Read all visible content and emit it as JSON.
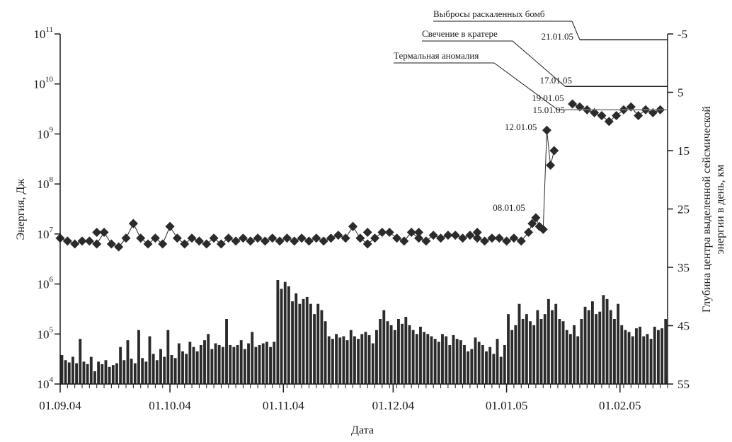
{
  "chart_data": {
    "type": "bar+scatter",
    "xlabel": "Дата",
    "ylabel_left": "Энергия, Дж",
    "ylabel_right_lines": [
      "Глубина центра выделенной сейсмической",
      "энергии в день, км"
    ],
    "x_range": [
      "2004-09-01",
      "2005-02-14"
    ],
    "x_ticks": [
      "01.09.04",
      "01.10.04",
      "01.11.04",
      "01.12.04",
      "01.01.05",
      "01.02.05"
    ],
    "left_axis": {
      "scale": "log",
      "range": [
        10000,
        100000000000
      ],
      "tick_exponents": [
        4,
        5,
        6,
        7,
        8,
        9,
        10,
        11
      ]
    },
    "right_axis": {
      "range": [
        55,
        -5
      ],
      "ticks": [
        -5,
        5,
        15,
        25,
        35,
        45,
        55
      ]
    },
    "series": [
      {
        "name": "",
        "kind": "bar",
        "axis": "left",
        "color": "#2b2b2b",
        "values": [
          38000,
          30000,
          27000,
          35000,
          26000,
          80000,
          28000,
          25000,
          35000,
          18000,
          28000,
          25000,
          30000,
          22000,
          24000,
          26000,
          55000,
          30000,
          75000,
          32000,
          26000,
          120000,
          33000,
          28000,
          90000,
          40000,
          30000,
          50000,
          35000,
          120000,
          38000,
          33000,
          65000,
          45000,
          40000,
          70000,
          55000,
          45000,
          60000,
          75000,
          100000,
          50000,
          65000,
          60000,
          55000,
          200000,
          60000,
          55000,
          60000,
          75000,
          50000,
          65000,
          110000,
          55000,
          60000,
          65000,
          70000,
          55000,
          70000,
          1200000,
          800000,
          1100000,
          900000,
          450000,
          650000,
          400000,
          500000,
          550000,
          400000,
          250000,
          400000,
          300000,
          180000,
          90000,
          80000,
          100000,
          85000,
          90000,
          75000,
          120000,
          90000,
          80000,
          100000,
          110000,
          95000,
          65000,
          120000,
          200000,
          300000,
          180000,
          150000,
          120000,
          200000,
          160000,
          220000,
          150000,
          120000,
          100000,
          140000,
          110000,
          100000,
          90000,
          80000,
          70000,
          100000,
          90000,
          60000,
          95000,
          80000,
          75000,
          60000,
          45000,
          50000,
          85000,
          70000,
          60000,
          45000,
          55000,
          40000,
          80000,
          35000,
          60000,
          250000,
          120000,
          150000,
          400000,
          200000,
          250000,
          180000,
          150000,
          300000,
          200000,
          250000,
          500000,
          300000,
          400000,
          200000,
          180000,
          120000,
          100000,
          150000,
          90000,
          200000,
          350000,
          300000,
          450000,
          250000,
          280000,
          600000,
          500000,
          300000,
          200000,
          400000,
          150000,
          120000,
          110000,
          90000,
          130000,
          140000,
          90000,
          100000,
          80000,
          140000,
          120000,
          130000,
          200000,
          180000,
          220000,
          900000,
          300000,
          450000,
          500000,
          400000,
          300000,
          350000,
          250000,
          100000,
          180000
        ],
        "start_date": "2004-09-01"
      },
      {
        "name": "",
        "kind": "line+markers",
        "axis": "right",
        "color": "#2b2b2b",
        "points": [
          [
            "2004-09-01",
            30
          ],
          [
            "2004-09-03",
            30.5
          ],
          [
            "2004-09-05",
            31
          ],
          [
            "2004-09-07",
            30.5
          ],
          [
            "2004-09-09",
            30.5
          ],
          [
            "2004-09-11",
            31
          ],
          [
            "2004-09-13",
            29
          ],
          [
            "2004-09-15",
            31
          ],
          [
            "2004-09-17",
            31.5
          ],
          [
            "2004-09-19",
            30
          ],
          [
            "2004-09-21",
            27.5
          ],
          [
            "2004-09-23",
            30
          ],
          [
            "2004-09-25",
            31
          ],
          [
            "2004-09-27",
            30
          ],
          [
            "2004-09-29",
            31
          ],
          [
            "2004-10-01",
            28
          ],
          [
            "2004-10-03",
            30
          ],
          [
            "2004-10-05",
            31
          ],
          [
            "2004-10-07",
            30
          ],
          [
            "2004-10-09",
            30.5
          ],
          [
            "2004-10-11",
            31
          ],
          [
            "2004-10-13",
            30
          ],
          [
            "2004-10-15",
            31
          ],
          [
            "2004-10-17",
            30
          ],
          [
            "2004-10-19",
            30.5
          ],
          [
            "2004-10-21",
            30
          ],
          [
            "2004-10-23",
            30.5
          ],
          [
            "2004-10-25",
            30
          ],
          [
            "2004-10-27",
            30.5
          ],
          [
            "2004-10-29",
            30
          ],
          [
            "2004-10-31",
            30.5
          ],
          [
            "2004-11-02",
            30
          ],
          [
            "2004-11-04",
            30.5
          ],
          [
            "2004-11-06",
            30
          ],
          [
            "2004-11-08",
            30.5
          ],
          [
            "2004-11-10",
            30
          ],
          [
            "2004-11-12",
            30.5
          ],
          [
            "2004-11-14",
            30
          ],
          [
            "2004-11-16",
            29.5
          ],
          [
            "2004-11-18",
            30
          ],
          [
            "2004-11-20",
            28
          ],
          [
            "2004-11-22",
            30
          ],
          [
            "2004-11-24",
            31
          ],
          [
            "2004-11-26",
            30
          ],
          [
            "2004-11-28",
            29
          ],
          [
            "2004-11-30",
            29
          ],
          [
            "2004-12-02",
            30
          ],
          [
            "2004-12-04",
            30.5
          ],
          [
            "2004-12-06",
            29
          ],
          [
            "2004-12-08",
            30
          ],
          [
            "2004-12-10",
            30.5
          ],
          [
            "2004-12-12",
            29.5
          ],
          [
            "2004-12-14",
            30
          ],
          [
            "2004-12-16",
            29.5
          ],
          [
            "2004-12-18",
            29.5
          ],
          [
            "2004-12-20",
            30
          ],
          [
            "2004-12-22",
            29.5
          ],
          [
            "2004-12-24",
            30
          ],
          [
            "2004-12-26",
            30.5
          ],
          [
            "2004-12-28",
            30
          ],
          [
            "2004-12-30",
            30
          ],
          [
            "2005-01-01",
            30.5
          ],
          [
            "2005-01-03",
            30
          ],
          [
            "2005-01-05",
            30.5
          ],
          [
            "2005-01-07",
            29
          ],
          [
            "2005-01-08",
            27.5
          ],
          [
            "2005-01-09",
            26.5
          ],
          [
            "2005-01-10",
            28
          ],
          [
            "2005-01-11",
            28.5
          ],
          [
            "2005-01-12",
            11.5
          ],
          [
            "2005-01-13",
            17.5
          ],
          [
            "2005-01-14",
            15
          ],
          [
            "2005-01-19",
            7
          ],
          [
            "2005-01-21",
            7.5
          ],
          [
            "2005-01-23",
            8
          ],
          [
            "2005-01-25",
            8.5
          ],
          [
            "2005-01-27",
            9
          ],
          [
            "2005-01-29",
            10
          ],
          [
            "2005-01-31",
            9
          ],
          [
            "2005-02-02",
            8
          ],
          [
            "2005-02-04",
            7.5
          ],
          [
            "2005-02-06",
            9
          ],
          [
            "2005-02-08",
            8
          ],
          [
            "2005-02-10",
            8.5
          ],
          [
            "2005-02-12",
            8
          ]
        ],
        "outliers": [
          [
            "2004-09-11",
            29
          ],
          [
            "2004-09-21",
            27.5
          ],
          [
            "2004-10-01",
            28
          ],
          [
            "2004-11-20",
            28
          ],
          [
            "2004-11-24",
            29
          ],
          [
            "2004-12-08",
            29
          ],
          [
            "2004-12-24",
            29
          ]
        ]
      }
    ],
    "point_labels": [
      {
        "text": "08.01.05",
        "date": "2005-01-08",
        "depth": 26
      },
      {
        "text": "12.01.05",
        "date": "2005-01-12",
        "depth": 11.5
      },
      {
        "text": "19.01.05",
        "date": "2005-01-19",
        "depth": 7
      }
    ],
    "annotations": [
      {
        "text": "Выбросы раскаленных бомб",
        "date_label": "21.01.05",
        "date": "2005-01-21",
        "depth": -4
      },
      {
        "text": "Свечение в кратере",
        "date_label": "17.01.05",
        "date": "2005-01-17",
        "depth": 4
      },
      {
        "text": "Термальная аномалия",
        "date_label": "15.01.05",
        "date": "2005-01-15",
        "depth": 8
      }
    ]
  }
}
